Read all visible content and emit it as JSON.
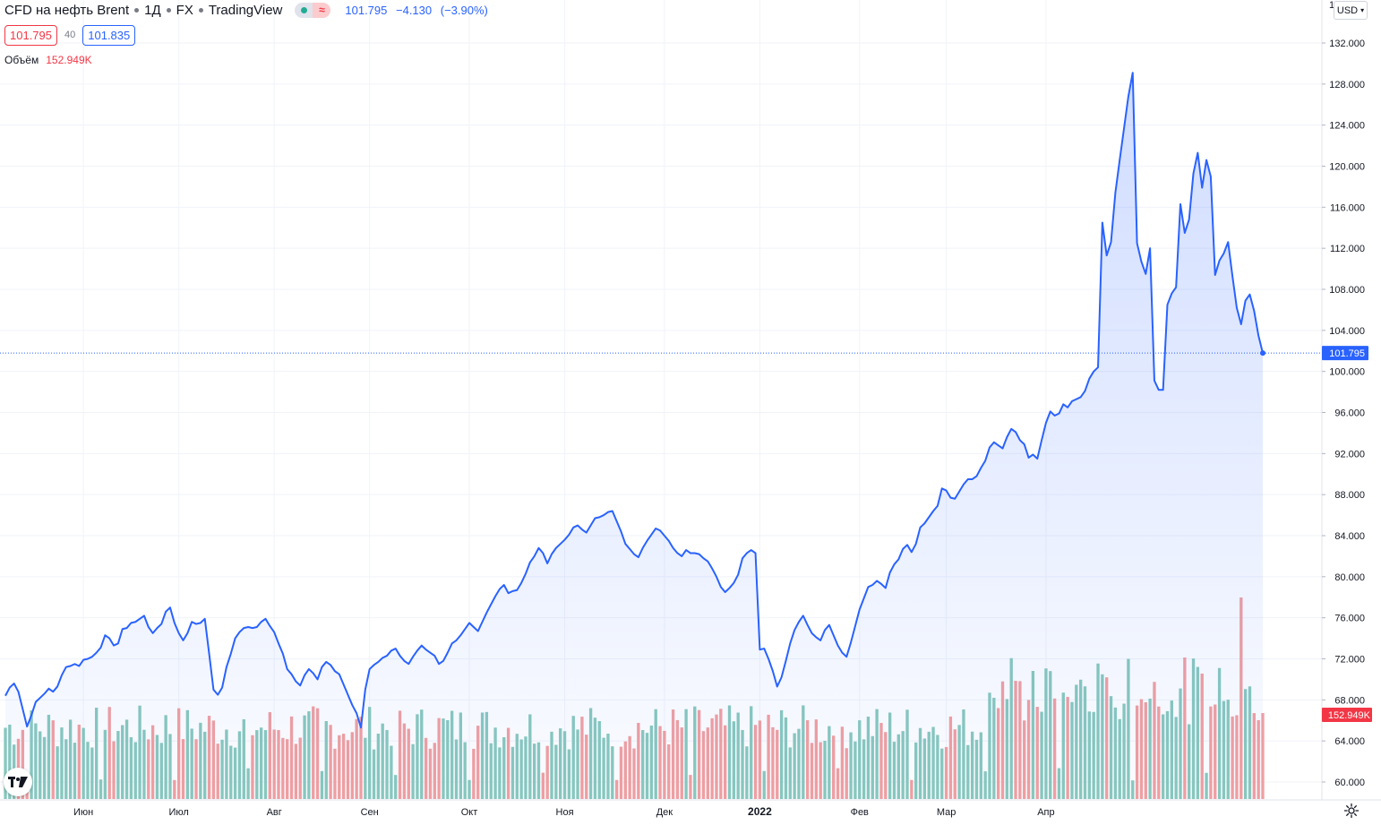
{
  "header": {
    "symbol": "CFD на нефть Brent",
    "interval": "1Д",
    "exchange": "FX",
    "source": "TradingView",
    "last": "101.795",
    "change": "−4.130",
    "change_pct": "(−3.90%)",
    "bid": "101.795",
    "spread": "40",
    "ask": "101.835",
    "volume_label": "Объём",
    "volume_value": "152.949K",
    "currency": "USD",
    "corner_fragment": "1"
  },
  "icons": {
    "logo": "tradingview-logo-icon",
    "settings": "gear-icon",
    "status_delay": "≈"
  },
  "colors": {
    "line": "#2962ff",
    "vol_up": "#89c9bd",
    "vol_down": "#f2a0a0",
    "last_badge": "#2962ff",
    "vol_badge": "#f23645"
  },
  "chart_data": {
    "type": "area",
    "ylim": [
      58,
      136
    ],
    "yticks": [
      "60.000",
      "64.000",
      "68.000",
      "72.000",
      "76.000",
      "80.000",
      "84.000",
      "88.000",
      "92.000",
      "96.000",
      "100.000",
      "104.000",
      "108.000",
      "112.000",
      "116.000",
      "120.000",
      "124.000",
      "128.000",
      "132.000"
    ],
    "xticks": [
      {
        "label": "Июн",
        "i": 18,
        "bold": false
      },
      {
        "label": "Июл",
        "i": 40,
        "bold": false
      },
      {
        "label": "Авг",
        "i": 62,
        "bold": false
      },
      {
        "label": "Сен",
        "i": 84,
        "bold": false
      },
      {
        "label": "Окт",
        "i": 107,
        "bold": false
      },
      {
        "label": "Ноя",
        "i": 129,
        "bold": false
      },
      {
        "label": "Дек",
        "i": 152,
        "bold": false
      },
      {
        "label": "2022",
        "i": 174,
        "bold": true
      },
      {
        "label": "Фев",
        "i": 197,
        "bold": false
      },
      {
        "label": "Мар",
        "i": 217,
        "bold": false
      },
      {
        "label": "Апр",
        "i": 240,
        "bold": false
      }
    ],
    "last_price_label": "101.795",
    "last_price": 101.795,
    "volume_label": "152.949K",
    "price": [
      68.4,
      69.2,
      69.6,
      68.8,
      67.1,
      65.4,
      66.5,
      67.8,
      68.2,
      68.6,
      69.1,
      68.8,
      69.3,
      70.4,
      71.2,
      71.3,
      71.5,
      71.3,
      71.9,
      72.0,
      72.2,
      72.6,
      73.1,
      74.3,
      74.0,
      73.3,
      73.5,
      74.9,
      75.0,
      75.5,
      75.6,
      75.9,
      76.2,
      75.1,
      74.5,
      75.0,
      75.4,
      76.6,
      77.0,
      75.5,
      74.5,
      73.8,
      74.5,
      75.6,
      75.4,
      75.5,
      75.9,
      72.5,
      69.0,
      68.5,
      69.2,
      71.2,
      72.5,
      74.0,
      74.6,
      75.0,
      75.1,
      75.0,
      75.1,
      75.6,
      75.9,
      75.2,
      74.6,
      73.5,
      72.5,
      71.0,
      70.5,
      69.8,
      69.4,
      70.4,
      71.0,
      70.6,
      70.0,
      71.2,
      71.7,
      71.4,
      70.8,
      70.5,
      69.5,
      68.5,
      67.5,
      66.7,
      65.3,
      69.0,
      71.0,
      71.4,
      71.7,
      72.1,
      72.3,
      72.8,
      73.0,
      72.3,
      71.8,
      71.5,
      72.2,
      72.8,
      73.3,
      72.9,
      72.6,
      72.3,
      71.5,
      71.8,
      72.6,
      73.5,
      73.8,
      74.3,
      74.9,
      75.5,
      75.1,
      74.7,
      75.6,
      76.5,
      77.3,
      78.1,
      78.8,
      79.2,
      78.4,
      78.6,
      78.7,
      79.4,
      80.3,
      81.4,
      82.0,
      82.8,
      82.3,
      81.3,
      82.2,
      82.8,
      83.2,
      83.6,
      84.1,
      84.8,
      85.0,
      84.6,
      84.3,
      85.0,
      85.7,
      85.8,
      86.0,
      86.3,
      86.4,
      85.4,
      84.4,
      83.2,
      82.7,
      82.2,
      81.9,
      82.8,
      83.5,
      84.1,
      84.7,
      84.5,
      84.0,
      83.5,
      82.8,
      82.3,
      82.0,
      82.6,
      82.3,
      82.3,
      82.2,
      81.8,
      81.5,
      80.8,
      80.0,
      79.0,
      78.5,
      78.9,
      79.4,
      80.2,
      81.8,
      82.3,
      82.6,
      82.3,
      72.9,
      73.0,
      72.0,
      70.8,
      69.3,
      70.2,
      71.8,
      73.5,
      74.8,
      75.6,
      76.2,
      75.3,
      74.5,
      74.1,
      73.8,
      74.8,
      75.3,
      74.3,
      73.3,
      72.6,
      72.2,
      73.6,
      75.2,
      76.8,
      77.9,
      79.0,
      79.2,
      79.6,
      79.3,
      78.9,
      80.4,
      81.2,
      81.7,
      82.7,
      83.1,
      82.4,
      83.2,
      84.8,
      85.2,
      85.8,
      86.4,
      86.9,
      88.6,
      88.4,
      87.7,
      87.6,
      88.3,
      89.0,
      89.5,
      89.5,
      89.8,
      90.6,
      91.3,
      92.6,
      93.1,
      92.8,
      92.5,
      93.6,
      94.4,
      94.1,
      93.3,
      92.9,
      91.6,
      91.9,
      91.5,
      93.3,
      95.0,
      96.1,
      95.7,
      95.9,
      96.8,
      96.5,
      97.1,
      97.3,
      97.5,
      98.1,
      99.3,
      100.0,
      100.4,
      114.5,
      111.3,
      112.6,
      117.4,
      120.6,
      123.7,
      126.8,
      129.1,
      112.5,
      110.7,
      109.5,
      112.0,
      99.1,
      98.2,
      98.2,
      106.5,
      107.6,
      108.2,
      116.3,
      113.5,
      114.8,
      119.3,
      121.3,
      117.9,
      120.6,
      119.0,
      109.4,
      110.8,
      111.5,
      112.6,
      109.3,
      106.2,
      104.6,
      106.9,
      107.5,
      105.9,
      103.5,
      101.795
    ],
    "volume": []
  }
}
